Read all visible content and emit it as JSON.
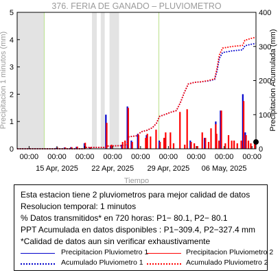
{
  "chart_data": {
    "type": "bar",
    "title": "376. FERIA DE GANADO – PLUVIOMETRO",
    "ylabel_left": "Precipitacion 1 minutos (mm)",
    "ylabel_right": "Precipitacion Acumulada (mm)",
    "xlabel": "Tiempo",
    "ylim_left": [
      0,
      5
    ],
    "ylim_right": [
      0,
      400
    ],
    "yticks_left": [
      "0",
      "1",
      "2",
      "3",
      "4",
      "5"
    ],
    "yticks_right": [
      "0",
      "100",
      "200",
      "300",
      "400"
    ],
    "xlim_days": [
      0,
      30
    ],
    "xticks": [
      {
        "pos": 1.5,
        "time": "00:00",
        "date": ""
      },
      {
        "pos": 5.0,
        "time": "00:00",
        "date": "15 Apr, 2025"
      },
      {
        "pos": 8.5,
        "time": "00:00",
        "date": ""
      },
      {
        "pos": 12.0,
        "time": "00:00",
        "date": "22 Apr, 2025"
      },
      {
        "pos": 15.5,
        "time": "00:00",
        "date": ""
      },
      {
        "pos": 19.0,
        "time": "00:00",
        "date": "29 Apr, 2025"
      },
      {
        "pos": 22.5,
        "time": "00:00",
        "date": ""
      },
      {
        "pos": 26.0,
        "time": "00:00",
        "date": "06 May, 2025"
      },
      {
        "pos": 29.5,
        "time": "00:00",
        "date": ""
      }
    ],
    "gaps_days": [
      [
        0,
        3.4
      ],
      [
        9.4,
        10.0
      ],
      [
        10.5,
        11.0
      ],
      [
        11.6,
        12.8
      ]
    ],
    "vlines_days": [
      3.4,
      17.8
    ],
    "series": [
      {
        "name": "Precipitacion Pluviometro 1",
        "color": "#0000cc",
        "values": [
          {
            "x": 5.0,
            "y": 0.04
          },
          {
            "x": 6.0,
            "y": 0.05
          },
          {
            "x": 6.8,
            "y": 0.06
          },
          {
            "x": 7.5,
            "y": 0.07
          },
          {
            "x": 8.5,
            "y": 0.2
          },
          {
            "x": 9.2,
            "y": 0.05
          },
          {
            "x": 11.2,
            "y": 1.25
          },
          {
            "x": 11.8,
            "y": 0.1
          },
          {
            "x": 13.2,
            "y": 0.15
          },
          {
            "x": 13.9,
            "y": 1.55
          },
          {
            "x": 14.4,
            "y": 0.3
          },
          {
            "x": 15.2,
            "y": 0.55
          },
          {
            "x": 16.3,
            "y": 0.5
          },
          {
            "x": 17.9,
            "y": 0.3
          },
          {
            "x": 18.6,
            "y": 0.4
          },
          {
            "x": 21.8,
            "y": 0.3
          },
          {
            "x": 23.6,
            "y": 0.4
          },
          {
            "x": 25.0,
            "y": 1.0
          },
          {
            "x": 25.6,
            "y": 1.4
          },
          {
            "x": 28.4,
            "y": 2.0
          },
          {
            "x": 28.7,
            "y": 0.6
          }
        ]
      },
      {
        "name": "Precipitacion Pluviometro 2",
        "color": "#ff0000",
        "values": [
          {
            "x": 5.0,
            "y": 0.05
          },
          {
            "x": 6.0,
            "y": 0.05
          },
          {
            "x": 6.8,
            "y": 0.06
          },
          {
            "x": 7.5,
            "y": 0.08
          },
          {
            "x": 8.5,
            "y": 0.22
          },
          {
            "x": 9.2,
            "y": 0.06
          },
          {
            "x": 11.2,
            "y": 0.95
          },
          {
            "x": 11.8,
            "y": 0.15
          },
          {
            "x": 13.2,
            "y": 0.25
          },
          {
            "x": 13.5,
            "y": 0.3
          },
          {
            "x": 13.9,
            "y": 1.5
          },
          {
            "x": 14.4,
            "y": 0.25
          },
          {
            "x": 15.2,
            "y": 0.5
          },
          {
            "x": 16.1,
            "y": 0.4
          },
          {
            "x": 16.3,
            "y": 0.55
          },
          {
            "x": 16.7,
            "y": 0.45
          },
          {
            "x": 17.4,
            "y": 0.7
          },
          {
            "x": 17.9,
            "y": 0.25
          },
          {
            "x": 18.4,
            "y": 0.4
          },
          {
            "x": 18.6,
            "y": 0.6
          },
          {
            "x": 19.2,
            "y": 0.6
          },
          {
            "x": 19.6,
            "y": 0.2
          },
          {
            "x": 20.4,
            "y": 1.35
          },
          {
            "x": 21.0,
            "y": 0.15
          },
          {
            "x": 21.3,
            "y": 1.45
          },
          {
            "x": 21.8,
            "y": 0.25
          },
          {
            "x": 22.2,
            "y": 0.2
          },
          {
            "x": 22.6,
            "y": 0.1
          },
          {
            "x": 23.2,
            "y": 0.6
          },
          {
            "x": 23.6,
            "y": 0.4
          },
          {
            "x": 24.0,
            "y": 0.25
          },
          {
            "x": 24.3,
            "y": 0.75
          },
          {
            "x": 24.9,
            "y": 0.9
          },
          {
            "x": 25.0,
            "y": 0.55
          },
          {
            "x": 25.3,
            "y": 0.3
          },
          {
            "x": 25.6,
            "y": 1.4
          },
          {
            "x": 26.1,
            "y": 0.2
          },
          {
            "x": 26.5,
            "y": 0.5
          },
          {
            "x": 26.9,
            "y": 0.3
          },
          {
            "x": 27.2,
            "y": 0.3
          },
          {
            "x": 27.6,
            "y": 0.2
          },
          {
            "x": 28.1,
            "y": 0.3
          },
          {
            "x": 28.4,
            "y": 1.75
          },
          {
            "x": 28.7,
            "y": 0.5
          },
          {
            "x": 29.0,
            "y": 0.3
          },
          {
            "x": 29.3,
            "y": 0.2
          },
          {
            "x": 29.8,
            "y": 0.2
          }
        ]
      },
      {
        "name": "Acumulado Pluviometro 1",
        "color": "#0000cc",
        "type": "line",
        "values": [
          {
            "x": 0,
            "y": 0
          },
          {
            "x": 5.0,
            "y": 0
          },
          {
            "x": 8.4,
            "y": 0
          },
          {
            "x": 8.6,
            "y": 4
          },
          {
            "x": 11.1,
            "y": 4
          },
          {
            "x": 11.3,
            "y": 8
          },
          {
            "x": 13.0,
            "y": 9
          },
          {
            "x": 13.8,
            "y": 12
          },
          {
            "x": 14.0,
            "y": 35
          },
          {
            "x": 15.0,
            "y": 38
          },
          {
            "x": 15.6,
            "y": 50
          },
          {
            "x": 16.3,
            "y": 54
          },
          {
            "x": 17.0,
            "y": 62
          },
          {
            "x": 17.5,
            "y": 75
          },
          {
            "x": 17.9,
            "y": 95
          },
          {
            "x": 18.5,
            "y": 100
          },
          {
            "x": 19.4,
            "y": 108
          },
          {
            "x": 20.0,
            "y": 112
          },
          {
            "x": 20.5,
            "y": 135
          },
          {
            "x": 21.0,
            "y": 165
          },
          {
            "x": 21.5,
            "y": 190
          },
          {
            "x": 22.3,
            "y": 195
          },
          {
            "x": 23.0,
            "y": 196
          },
          {
            "x": 24.0,
            "y": 199
          },
          {
            "x": 24.8,
            "y": 203
          },
          {
            "x": 25.1,
            "y": 228
          },
          {
            "x": 25.4,
            "y": 265
          },
          {
            "x": 25.8,
            "y": 282
          },
          {
            "x": 27.0,
            "y": 287
          },
          {
            "x": 28.3,
            "y": 290
          },
          {
            "x": 28.6,
            "y": 302
          },
          {
            "x": 29.3,
            "y": 306
          },
          {
            "x": 30.0,
            "y": 309
          }
        ]
      },
      {
        "name": "Acumulado Pluviometro 2",
        "color": "#ff0000",
        "type": "line",
        "values": [
          {
            "x": 0,
            "y": 0
          },
          {
            "x": 5.0,
            "y": 0
          },
          {
            "x": 8.4,
            "y": 0
          },
          {
            "x": 8.6,
            "y": 4
          },
          {
            "x": 11.1,
            "y": 4
          },
          {
            "x": 11.3,
            "y": 8
          },
          {
            "x": 13.0,
            "y": 9
          },
          {
            "x": 13.8,
            "y": 12
          },
          {
            "x": 14.0,
            "y": 35
          },
          {
            "x": 15.0,
            "y": 38
          },
          {
            "x": 15.6,
            "y": 50
          },
          {
            "x": 16.3,
            "y": 54
          },
          {
            "x": 17.0,
            "y": 62
          },
          {
            "x": 17.5,
            "y": 75
          },
          {
            "x": 17.9,
            "y": 95
          },
          {
            "x": 18.5,
            "y": 100
          },
          {
            "x": 19.4,
            "y": 108
          },
          {
            "x": 20.0,
            "y": 112
          },
          {
            "x": 20.5,
            "y": 135
          },
          {
            "x": 21.0,
            "y": 165
          },
          {
            "x": 21.5,
            "y": 190
          },
          {
            "x": 22.3,
            "y": 195
          },
          {
            "x": 23.0,
            "y": 196
          },
          {
            "x": 24.0,
            "y": 200
          },
          {
            "x": 24.8,
            "y": 205
          },
          {
            "x": 25.1,
            "y": 235
          },
          {
            "x": 25.4,
            "y": 275
          },
          {
            "x": 25.8,
            "y": 295
          },
          {
            "x": 27.0,
            "y": 300
          },
          {
            "x": 28.3,
            "y": 303
          },
          {
            "x": 28.6,
            "y": 318
          },
          {
            "x": 29.3,
            "y": 323
          },
          {
            "x": 30.0,
            "y": 327
          }
        ]
      }
    ],
    "end_marker": {
      "x": 30.0,
      "y_right": 20
    }
  },
  "info": {
    "lines": [
      "Esta estacion tiene 2 pluviometros para mejor calidad de datos",
      "Resolucion temporal: 1 minutos",
      "% Datos transmitidos* en 720 horas: P1− 80.1, P2− 80.1",
      "PPT Acumulada en datos disponibles : P1−309.4, P2−327.4 mm",
      "*Calidad de datos aun sin verificar exhaustivamente"
    ],
    "legend": [
      {
        "label": "Precipitacion Pluviometro 1",
        "color": "#0000cc",
        "style": "solid"
      },
      {
        "label": "Precipitacion Pluviometro 2",
        "color": "#ff0000",
        "style": "solid"
      },
      {
        "label": "Acumulado Pluviometro 1",
        "color": "#0000cc",
        "style": "dotted"
      },
      {
        "label": "Acumulado Pluviometro 2",
        "color": "#ff0000",
        "style": "dotted"
      }
    ]
  }
}
